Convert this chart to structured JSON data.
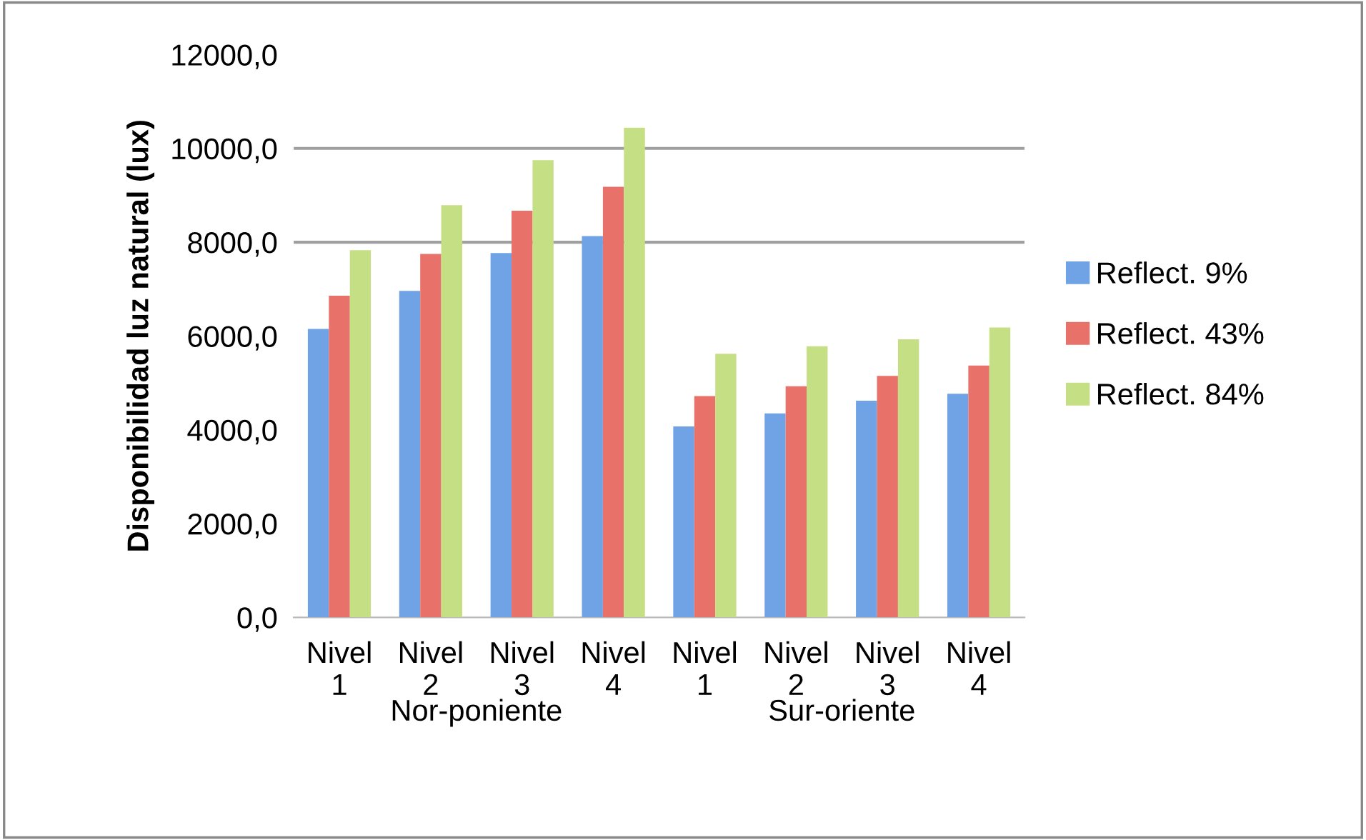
{
  "chart_data": {
    "type": "bar",
    "ylabel": "Disponibilidad luz natural (lux)",
    "categories": [
      "Nivel 1",
      "Nivel 2",
      "Nivel 3",
      "Nivel 4",
      "Nivel 1",
      "Nivel 2",
      "Nivel 3",
      "Nivel 4"
    ],
    "series": [
      {
        "name": "Reflect. 9%",
        "color": "#6fa3e6",
        "values": [
          6150,
          6960,
          7770,
          8130,
          4070,
          4350,
          4620,
          4770
        ]
      },
      {
        "name": "Reflect. 43%",
        "color": "#e8726a",
        "values": [
          6860,
          7750,
          8670,
          9180,
          4720,
          4930,
          5150,
          5370
        ]
      },
      {
        "name": "Reflect. 84%",
        "color": "#c5df84",
        "values": [
          7830,
          8790,
          9750,
          10440,
          5620,
          5780,
          5930,
          6180
        ]
      }
    ],
    "ylim": [
      0,
      12000
    ],
    "yticks": [
      {
        "value": 0,
        "label": "0,0"
      },
      {
        "value": 2000,
        "label": "2000,0"
      },
      {
        "value": 4000,
        "label": "4000,0"
      },
      {
        "value": 6000,
        "label": "6000,0"
      },
      {
        "value": 8000,
        "label": "8000,0"
      },
      {
        "value": 10000,
        "label": "10000,0"
      },
      {
        "value": 12000,
        "label": "12000,0"
      }
    ],
    "ref_lines": [
      {
        "axis": "y",
        "value": 8000,
        "color": "#a0a0a0"
      },
      {
        "axis": "y",
        "value": 10000,
        "color": "#a0a0a0"
      }
    ],
    "annotations": [
      "Nor-poniente",
      "Sur-oriente"
    ],
    "legend": "right",
    "grid": false
  }
}
